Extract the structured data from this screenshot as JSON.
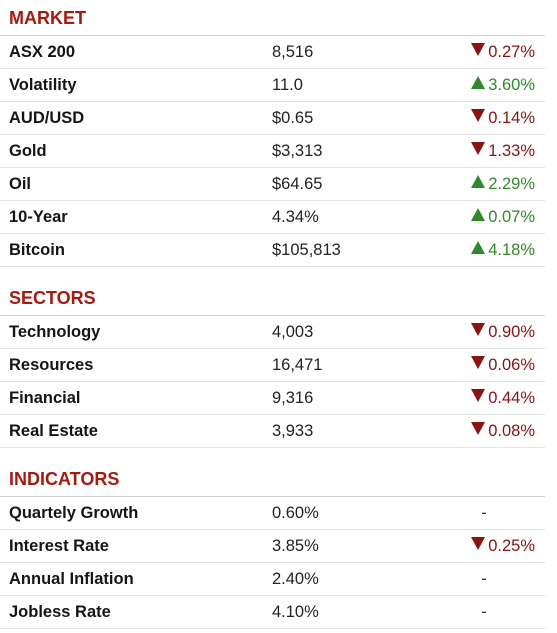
{
  "colors": {
    "section_title": "#a8180f",
    "up": "#2f8a2a",
    "down": "#8b1313"
  },
  "sections": [
    {
      "title": "MARKET",
      "rows": [
        {
          "name": "ASX 200",
          "value": "8,516",
          "change": "0.27%",
          "direction": "down"
        },
        {
          "name": "Volatility",
          "value": "11.0",
          "change": "3.60%",
          "direction": "up"
        },
        {
          "name": "AUD/USD",
          "value": "$0.65",
          "change": "0.14%",
          "direction": "down"
        },
        {
          "name": "Gold",
          "value": "$3,313",
          "change": "1.33%",
          "direction": "down"
        },
        {
          "name": "Oil",
          "value": "$64.65",
          "change": "2.29%",
          "direction": "up"
        },
        {
          "name": "10-Year",
          "value": "4.34%",
          "change": "0.07%",
          "direction": "up"
        },
        {
          "name": "Bitcoin",
          "value": "$105,813",
          "change": "4.18%",
          "direction": "up"
        }
      ]
    },
    {
      "title": "SECTORS",
      "rows": [
        {
          "name": "Technology",
          "value": "4,003",
          "change": "0.90%",
          "direction": "down"
        },
        {
          "name": "Resources",
          "value": "16,471",
          "change": "0.06%",
          "direction": "down"
        },
        {
          "name": "Financial",
          "value": "9,316",
          "change": "0.44%",
          "direction": "down"
        },
        {
          "name": "Real Estate",
          "value": "3,933",
          "change": "0.08%",
          "direction": "down"
        }
      ]
    },
    {
      "title": "INDICATORS",
      "rows": [
        {
          "name": "Quartely Growth",
          "value": "0.60%",
          "change": "-",
          "direction": "flat"
        },
        {
          "name": "Interest Rate",
          "value": "3.85%",
          "change": "0.25%",
          "direction": "down"
        },
        {
          "name": "Annual Inflation",
          "value": "2.40%",
          "change": "-",
          "direction": "flat"
        },
        {
          "name": "Jobless Rate",
          "value": "4.10%",
          "change": "-",
          "direction": "flat"
        }
      ]
    }
  ]
}
